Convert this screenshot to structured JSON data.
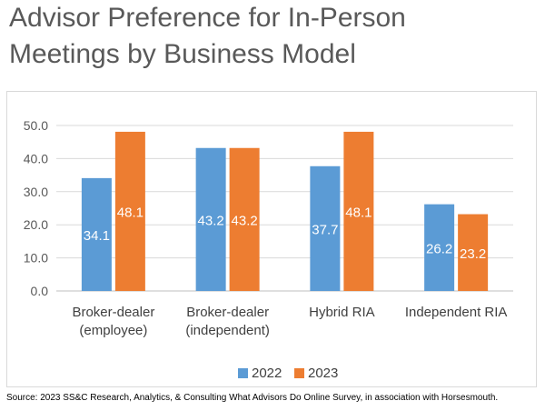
{
  "title": "Advisor Preference for In-Person\nMeetings by Business Model",
  "source": "Source: 2023 SS&C Research, Analytics, & Consulting What Advisors Do Online Survey, in association with Horsesmouth.",
  "chart_data": {
    "type": "bar",
    "categories": [
      "Broker-dealer\n(employee)",
      "Broker-dealer\n(independent)",
      "Hybrid RIA",
      "Independent RIA"
    ],
    "series": [
      {
        "name": "2022",
        "values": [
          34.1,
          43.2,
          37.7,
          26.2
        ],
        "color": "#5b9bd5"
      },
      {
        "name": "2023",
        "values": [
          48.1,
          43.2,
          48.1,
          23.2
        ],
        "color": "#ed7d31"
      }
    ],
    "yticks": [
      "0.0",
      "10.0",
      "20.0",
      "30.0",
      "40.0",
      "50.0"
    ],
    "ylim": [
      0,
      50
    ],
    "grid": true,
    "legend": "bottom",
    "data_labels": true
  }
}
